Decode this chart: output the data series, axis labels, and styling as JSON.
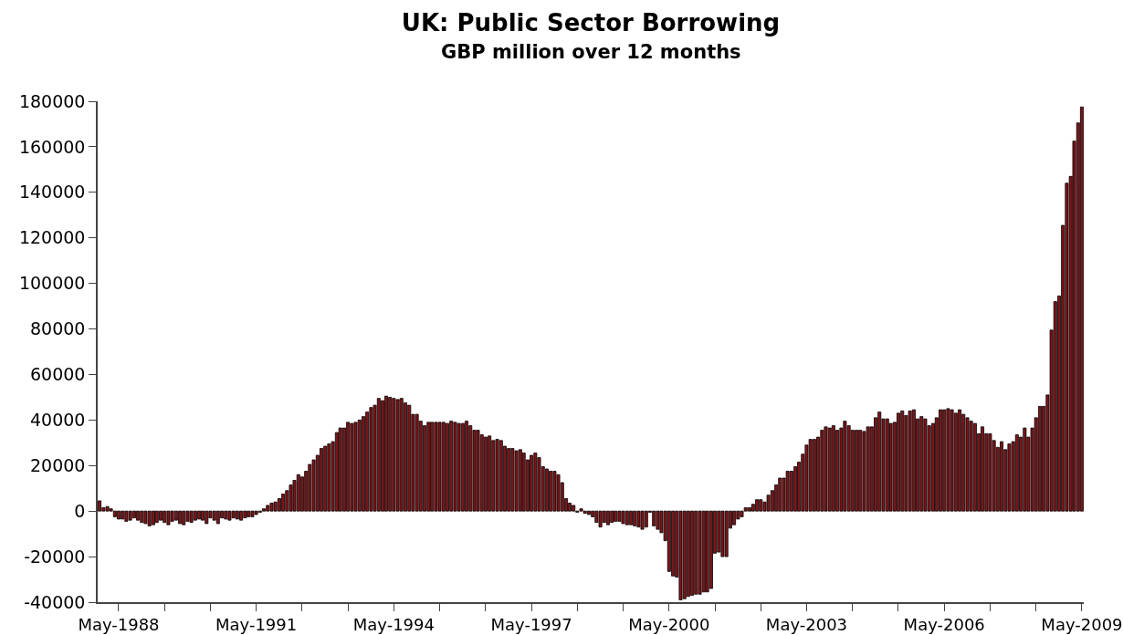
{
  "chart_data": {
    "type": "bar",
    "title": "UK: Public Sector Borrowing",
    "subtitle": "GBP million over 12 months",
    "color": "#7d1418",
    "x": [
      "1987-12",
      "1988-01",
      "1988-02",
      "1988-03",
      "1988-04",
      "1988-05",
      "1988-06",
      "1988-07",
      "1988-08",
      "1988-09",
      "1988-10",
      "1988-11",
      "1988-12",
      "1989-01",
      "1989-02",
      "1989-03",
      "1989-04",
      "1989-05",
      "1989-06",
      "1989-07",
      "1989-08",
      "1989-09",
      "1989-10",
      "1989-11",
      "1989-12",
      "1990-01",
      "1990-02",
      "1990-03",
      "1990-04",
      "1990-05",
      "1990-06",
      "1990-07",
      "1990-08",
      "1990-09",
      "1990-10",
      "1990-11",
      "1990-12",
      "1991-01",
      "1991-02",
      "1991-03",
      "1991-04",
      "1991-05",
      "1991-06",
      "1991-07",
      "1991-08",
      "1991-09",
      "1991-10",
      "1991-11",
      "1991-12",
      "1992-01",
      "1992-02",
      "1992-03",
      "1992-04",
      "1992-05",
      "1992-06",
      "1992-07",
      "1992-08",
      "1992-09",
      "1992-10",
      "1992-11",
      "1992-12",
      "1993-01",
      "1993-02",
      "1993-03",
      "1993-04",
      "1993-05",
      "1993-06",
      "1993-07",
      "1993-08",
      "1993-09",
      "1993-10",
      "1993-11",
      "1993-12",
      "1994-01",
      "1994-02",
      "1994-03",
      "1994-04",
      "1994-05",
      "1994-06",
      "1994-07",
      "1994-08",
      "1994-09",
      "1994-10",
      "1994-11",
      "1994-12",
      "1995-01",
      "1995-02",
      "1995-03",
      "1995-04",
      "1995-05",
      "1995-06",
      "1995-07",
      "1995-08",
      "1995-09",
      "1995-10",
      "1995-11",
      "1995-12",
      "1996-01",
      "1996-02",
      "1996-03",
      "1996-04",
      "1996-05",
      "1996-06",
      "1996-07",
      "1996-08",
      "1996-09",
      "1996-10",
      "1996-11",
      "1996-12",
      "1997-01",
      "1997-02",
      "1997-03",
      "1997-04",
      "1997-05",
      "1997-06",
      "1997-07",
      "1997-08",
      "1997-09",
      "1997-10",
      "1997-11",
      "1997-12",
      "1998-01",
      "1998-02",
      "1998-03",
      "1998-04",
      "1998-05",
      "1998-06",
      "1998-07",
      "1998-08",
      "1998-09",
      "1998-10",
      "1998-11",
      "1998-12",
      "1999-01",
      "1999-02",
      "1999-03",
      "1999-04",
      "1999-05",
      "1999-06",
      "1999-07",
      "1999-08",
      "1999-09",
      "1999-10",
      "1999-11",
      "1999-12",
      "2000-01",
      "2000-02",
      "2000-03",
      "2000-04",
      "2000-05",
      "2000-06",
      "2000-07",
      "2000-08",
      "2000-09",
      "2000-10",
      "2000-11",
      "2000-12",
      "2001-01",
      "2001-02",
      "2001-03",
      "2001-04",
      "2001-05",
      "2001-06",
      "2001-07",
      "2001-08",
      "2001-09",
      "2001-10",
      "2001-11",
      "2001-12",
      "2002-01",
      "2002-02",
      "2002-03",
      "2002-04",
      "2002-05",
      "2002-06",
      "2002-07",
      "2002-08",
      "2002-09",
      "2002-10",
      "2002-11",
      "2002-12",
      "2003-01",
      "2003-02",
      "2003-03",
      "2003-04",
      "2003-05",
      "2003-06",
      "2003-07",
      "2003-08",
      "2003-09",
      "2003-10",
      "2003-11",
      "2003-12",
      "2004-01",
      "2004-02",
      "2004-03",
      "2004-04",
      "2004-05",
      "2004-06",
      "2004-07",
      "2004-08",
      "2004-09",
      "2004-10",
      "2004-11",
      "2004-12",
      "2005-01",
      "2005-02",
      "2005-03",
      "2005-04",
      "2005-05",
      "2005-06",
      "2005-07",
      "2005-08",
      "2005-09",
      "2005-10",
      "2005-11",
      "2005-12",
      "2006-01",
      "2006-02",
      "2006-03",
      "2006-04",
      "2006-05",
      "2006-06",
      "2006-07",
      "2006-08",
      "2006-09",
      "2006-10",
      "2006-11",
      "2006-12",
      "2007-01",
      "2007-02",
      "2007-03",
      "2007-04",
      "2007-05",
      "2007-06",
      "2007-07",
      "2007-08",
      "2007-09",
      "2007-10",
      "2007-11",
      "2007-12",
      "2008-01",
      "2008-02",
      "2008-03",
      "2008-04",
      "2008-05",
      "2008-06",
      "2008-07",
      "2008-08",
      "2008-09",
      "2008-10",
      "2008-11",
      "2008-12",
      "2009-01",
      "2009-02",
      "2009-03",
      "2009-04",
      "2009-05"
    ],
    "values": [
      4500,
      1500,
      2000,
      1000,
      -2500,
      -3500,
      -3500,
      -4500,
      -4000,
      -3000,
      -4000,
      -5000,
      -5500,
      -6500,
      -6000,
      -5000,
      -4000,
      -5000,
      -6000,
      -4500,
      -4000,
      -5500,
      -6000,
      -4500,
      -5000,
      -4000,
      -3500,
      -4000,
      -5500,
      -3000,
      -4000,
      -5500,
      -3000,
      -3500,
      -4000,
      -3000,
      -3500,
      -4000,
      -3000,
      -2500,
      -2500,
      -1500,
      -500,
      1000,
      2500,
      3500,
      4000,
      5500,
      7500,
      9000,
      11500,
      13500,
      16000,
      15000,
      17500,
      20500,
      22500,
      24500,
      27500,
      28500,
      29500,
      30500,
      34500,
      36500,
      36500,
      39000,
      38500,
      39000,
      40000,
      41500,
      43500,
      45500,
      46500,
      49500,
      48500,
      50500,
      50000,
      49500,
      49000,
      49500,
      47500,
      46500,
      42500,
      42500,
      39500,
      37500,
      39000,
      39000,
      39000,
      39000,
      39000,
      38500,
      39500,
      39000,
      38500,
      38500,
      39500,
      37500,
      35500,
      35500,
      33500,
      32500,
      33000,
      31000,
      31500,
      31000,
      28500,
      27500,
      27500,
      26500,
      27000,
      25500,
      22500,
      24500,
      25500,
      23500,
      19500,
      18500,
      17500,
      17500,
      16000,
      12500,
      5500,
      3500,
      2500,
      -500,
      1000,
      -1000,
      -1500,
      -2500,
      -5000,
      -7000,
      -5000,
      -6000,
      -5000,
      -4500,
      -4500,
      -5500,
      -6000,
      -6000,
      -6500,
      -7000,
      -8000,
      -7000,
      -500,
      -6500,
      -8000,
      -9500,
      -13000,
      -26500,
      -28500,
      -29000,
      -39000,
      -38500,
      -37500,
      -37000,
      -36500,
      -36500,
      -35500,
      -35500,
      -34000,
      -18500,
      -18000,
      -20000,
      -20000,
      -7500,
      -6000,
      -3500,
      -2500,
      1500,
      1500,
      3000,
      5000,
      5000,
      4000,
      7000,
      9000,
      11500,
      14500,
      14500,
      17500,
      17500,
      19500,
      21500,
      25000,
      29000,
      31500,
      31500,
      32500,
      35500,
      37000,
      36500,
      37500,
      35500,
      36500,
      39500,
      37500,
      35500,
      35500,
      35500,
      35000,
      37000,
      37000,
      41000,
      43500,
      40500,
      40500,
      38500,
      39000,
      43000,
      44000,
      42000,
      44000,
      44500,
      40500,
      41500,
      40500,
      37500,
      38500,
      41000,
      44500,
      44500,
      45000,
      44500,
      43000,
      44500,
      42500,
      41000,
      39500,
      38500,
      34000,
      37000,
      34000,
      34000,
      31000,
      28000,
      30500,
      27000,
      29500,
      30500,
      33500,
      32500,
      36500,
      32500,
      36500,
      41000,
      46000,
      46000,
      51000,
      79500,
      92000,
      94500,
      125500,
      144000,
      147000,
      162500,
      170500,
      177500
    ],
    "xlim": [
      "1987-11-16",
      "2009-05-16"
    ],
    "xticks": [
      {
        "value": "1988-05",
        "label": "May-1988"
      },
      {
        "value": "1989-05",
        "label": null
      },
      {
        "value": "1990-05",
        "label": null
      },
      {
        "value": "1991-05",
        "label": "May-1991"
      },
      {
        "value": "1992-05",
        "label": null
      },
      {
        "value": "1993-05",
        "label": null
      },
      {
        "value": "1994-05",
        "label": "May-1994"
      },
      {
        "value": "1995-05",
        "label": null
      },
      {
        "value": "1996-05",
        "label": null
      },
      {
        "value": "1997-05",
        "label": "May-1997"
      },
      {
        "value": "1998-05",
        "label": null
      },
      {
        "value": "1999-05",
        "label": null
      },
      {
        "value": "2000-05",
        "label": "May-2000"
      },
      {
        "value": "2001-05",
        "label": null
      },
      {
        "value": "2002-05",
        "label": null
      },
      {
        "value": "2003-05",
        "label": "May-2003"
      },
      {
        "value": "2004-05",
        "label": null
      },
      {
        "value": "2005-05",
        "label": null
      },
      {
        "value": "2006-05",
        "label": "May-2006"
      },
      {
        "value": "2007-05",
        "label": null
      },
      {
        "value": "2008-05",
        "label": null
      },
      {
        "value": "2009-05",
        "label": "May-2009"
      }
    ],
    "ylim": [
      -40000,
      180000
    ],
    "yticks": [
      -40000,
      -20000,
      0,
      20000,
      40000,
      60000,
      80000,
      100000,
      120000,
      140000,
      160000,
      180000
    ]
  }
}
